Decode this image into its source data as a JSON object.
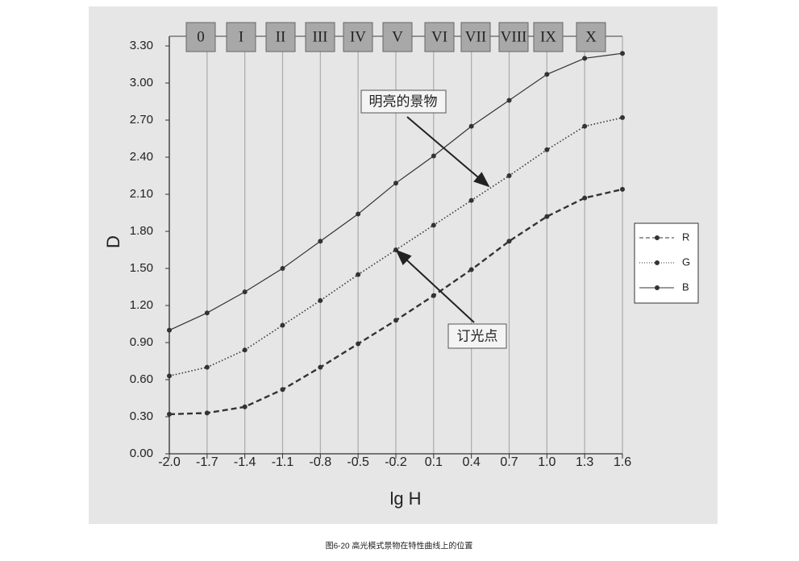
{
  "chart_data": {
    "type": "line",
    "xlabel": "lg H",
    "ylabel": "D",
    "caption": "图6-20  高光模式景物在特性曲线上的位置",
    "zones": [
      "0",
      "I",
      "II",
      "III",
      "IV",
      "V",
      "VI",
      "VII",
      "VIII",
      "IX",
      "X"
    ],
    "annotations": [
      "明亮的景物",
      "订光点"
    ],
    "x": [
      -2.0,
      -1.7,
      -1.4,
      -1.1,
      -0.8,
      -0.5,
      -0.2,
      0.1,
      0.4,
      0.7,
      1.0,
      1.3,
      1.6
    ],
    "series": [
      {
        "name": "R",
        "color": "#333333",
        "style": "dashed",
        "values": [
          0.32,
          0.33,
          0.38,
          0.52,
          0.7,
          0.89,
          1.08,
          1.28,
          1.49,
          1.72,
          1.92,
          2.07,
          2.14
        ]
      },
      {
        "name": "G",
        "color": "#333333",
        "style": "dotted",
        "values": [
          0.63,
          0.7,
          0.84,
          1.04,
          1.24,
          1.45,
          1.65,
          1.85,
          2.05,
          2.25,
          2.46,
          2.65,
          2.72
        ]
      },
      {
        "name": "B",
        "color": "#333333",
        "style": "solid",
        "values": [
          1.0,
          1.14,
          1.31,
          1.5,
          1.72,
          1.94,
          2.19,
          2.41,
          2.65,
          2.86,
          3.07,
          3.2,
          3.24
        ]
      }
    ],
    "xlim": [
      -2.0,
      1.6
    ],
    "xticks": [
      {
        "value": -2.0,
        "label": "-2.0"
      },
      -1.7,
      -1.4,
      -1.1,
      -0.8,
      -0.5,
      -0.2,
      0.1,
      0.4,
      0.7,
      {
        "value": 1.0,
        "label": "1.0"
      },
      1.3,
      1.6
    ],
    "ylim": [
      0,
      3.3
    ],
    "yticks": [
      {
        "value": 0,
        "label": "0.00"
      },
      {
        "value": 0.3,
        "label": "0.30"
      },
      {
        "value": 0.6,
        "label": "0.60"
      },
      {
        "value": 0.9,
        "label": "0.90"
      },
      {
        "value": 1.2,
        "label": "1.20"
      },
      {
        "value": 1.5,
        "label": "1.50"
      },
      {
        "value": 1.8,
        "label": "1.80"
      },
      {
        "value": 2.1,
        "label": "2.10"
      },
      {
        "value": 2.4,
        "label": "2.40"
      },
      {
        "value": 2.7,
        "label": "2.70"
      },
      {
        "value": 3.0,
        "label": "3.00"
      },
      {
        "value": 3.3,
        "label": "3.30"
      }
    ],
    "grid": true
  }
}
